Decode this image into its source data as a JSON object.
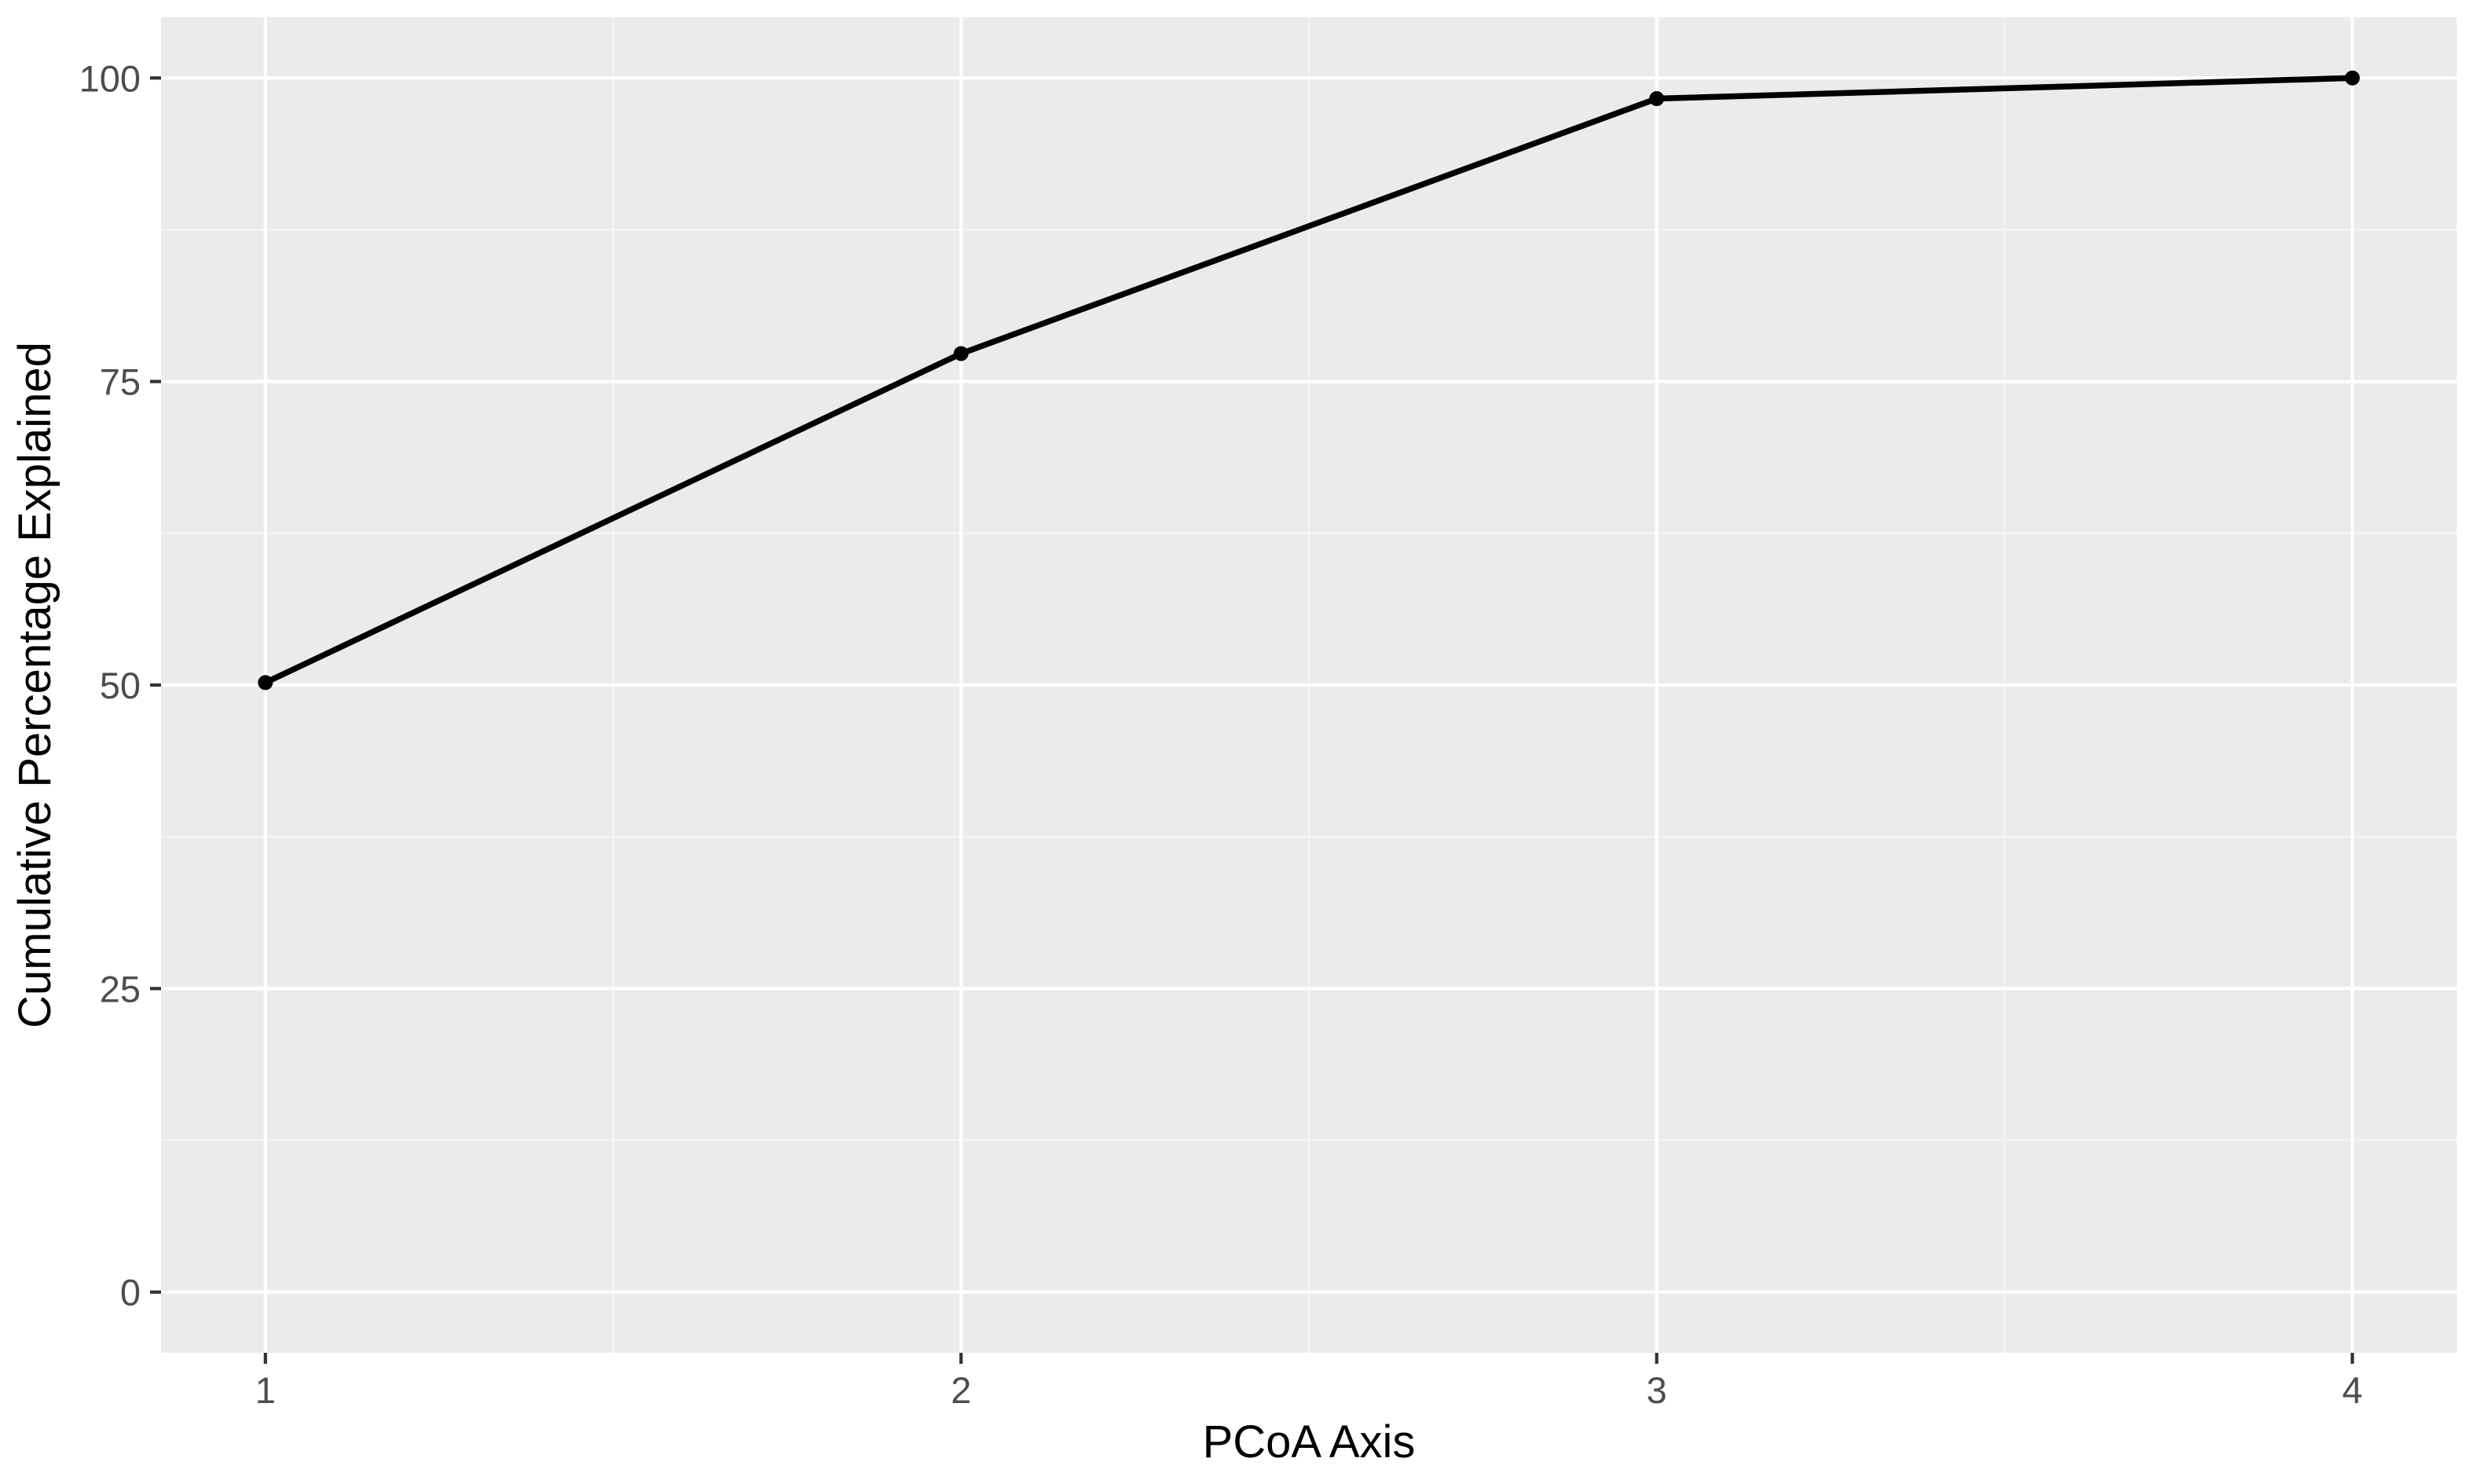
{
  "chart_data": {
    "type": "line",
    "title": "",
    "xlabel": "PCoA Axis",
    "ylabel": "Cumulative Percentage Explained",
    "x": [
      1,
      2,
      3,
      4
    ],
    "xticks": [
      "1",
      "2",
      "3",
      "4"
    ],
    "yticks": [
      "0",
      "25",
      "50",
      "75",
      "100"
    ],
    "xlim": [
      0.85,
      4.15
    ],
    "ylim": [
      -5,
      105
    ],
    "series": [
      {
        "values": [
          50.2,
          77.3,
          98.3,
          100.0
        ]
      }
    ],
    "grid": true,
    "legend": "none",
    "colors": {
      "panel_background": "#ebebeb",
      "grid_major": "#ffffff",
      "grid_minor": "#f5f5f5",
      "line": "#000000",
      "tick_label": "#4d4d4d",
      "tick_mark": "#333333"
    }
  }
}
